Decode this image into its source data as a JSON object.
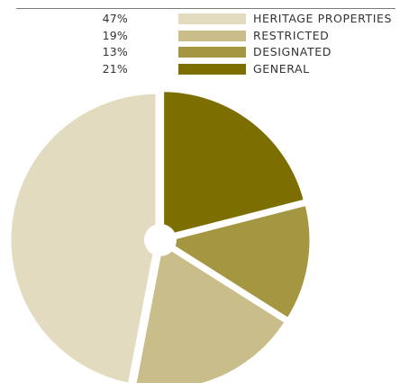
{
  "chart_data": {
    "type": "pie",
    "title": "",
    "slices": [
      {
        "label": "HERITAGE PROPERTIES",
        "pct_label": "47%",
        "value": 47,
        "color": "#e3dbbf"
      },
      {
        "label": "RESTRICTED",
        "pct_label": "19%",
        "value": 19,
        "color": "#c9be8a"
      },
      {
        "label": "DESIGNATED",
        "pct_label": "13%",
        "value": 13,
        "color": "#a59742"
      },
      {
        "label": "GENERAL",
        "pct_label": "21%",
        "value": 21,
        "color": "#7d6e00"
      }
    ],
    "legend_position": "top-right"
  }
}
